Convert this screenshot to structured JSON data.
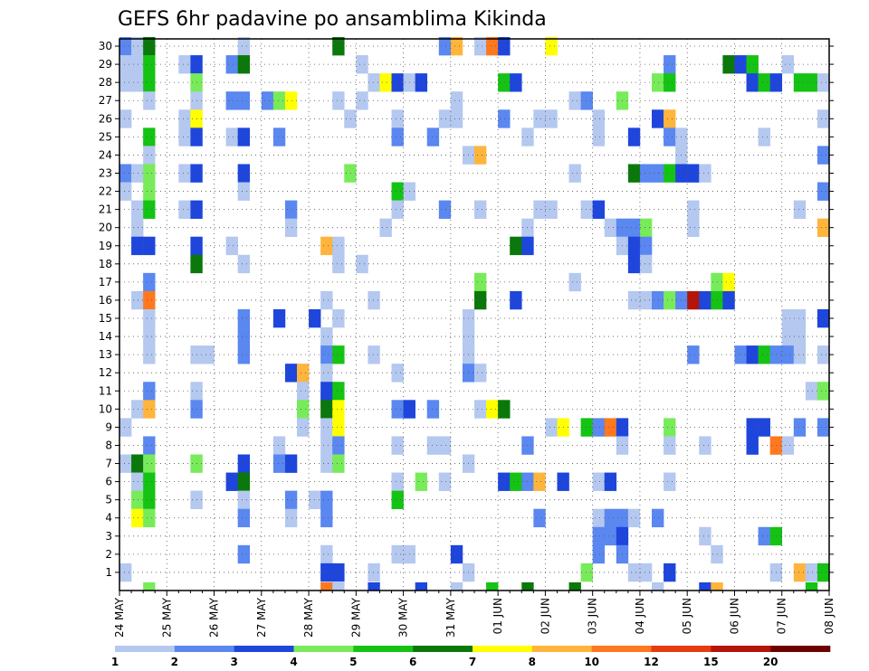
{
  "chart_data": {
    "type": "heatmap",
    "title": "GEFS 6hr padavine po ansamblima Kikinda",
    "xlabel": "",
    "ylabel": "",
    "x_ticks": [
      "24 MAY",
      "25 MAY",
      "26 MAY",
      "27 MAY",
      "28 MAY",
      "29 MAY",
      "30 MAY",
      "31 MAY",
      "01 JUN",
      "02 JUN",
      "03 JUN",
      "04 JUN",
      "05 JUN",
      "06 JUN",
      "07 JUN",
      "08 JUN"
    ],
    "y_ticks": [
      1,
      2,
      3,
      4,
      5,
      6,
      7,
      8,
      9,
      10,
      11,
      12,
      13,
      14,
      15,
      16,
      17,
      18,
      19,
      20,
      21,
      22,
      23,
      24,
      25,
      26,
      27,
      28,
      29,
      30
    ],
    "ylim": [
      0,
      30
    ],
    "time_steps": 60,
    "members": 30,
    "grid": true,
    "legend_position": "bottom",
    "legend": {
      "labels": [
        "1",
        "2",
        "3",
        "4",
        "5",
        "6",
        "7",
        "8",
        "10",
        "12",
        "15",
        "20"
      ],
      "colors": [
        "#b4c8f0",
        "#5a87f0",
        "#1e46dc",
        "#78eb5a",
        "#14c314",
        "#0a780a",
        "#ffff00",
        "#ffb43c",
        "#ff781e",
        "#e63c0f",
        "#b4140a",
        "#6e0000"
      ]
    },
    "cells": [
      [
        0,
        30,
        2
      ],
      [
        1,
        30,
        1
      ],
      [
        2,
        30,
        6
      ],
      [
        10,
        30,
        1
      ],
      [
        18,
        30,
        6
      ],
      [
        27,
        30,
        2
      ],
      [
        28,
        30,
        8
      ],
      [
        30,
        30,
        1
      ],
      [
        31,
        30,
        9
      ],
      [
        32,
        30,
        3
      ],
      [
        36,
        30,
        7
      ],
      [
        0,
        29,
        1
      ],
      [
        1,
        29,
        1
      ],
      [
        2,
        29,
        5
      ],
      [
        5,
        29,
        1
      ],
      [
        6,
        29,
        3
      ],
      [
        9,
        29,
        2
      ],
      [
        10,
        29,
        6
      ],
      [
        20,
        29,
        1
      ],
      [
        46,
        29,
        2
      ],
      [
        51,
        29,
        6
      ],
      [
        52,
        29,
        3
      ],
      [
        53,
        29,
        5
      ],
      [
        56,
        29,
        1
      ],
      [
        0,
        28,
        1
      ],
      [
        1,
        28,
        1
      ],
      [
        2,
        28,
        5
      ],
      [
        6,
        28,
        4
      ],
      [
        21,
        28,
        1
      ],
      [
        22,
        28,
        7
      ],
      [
        23,
        28,
        3
      ],
      [
        24,
        28,
        1
      ],
      [
        25,
        28,
        3
      ],
      [
        32,
        28,
        5
      ],
      [
        33,
        28,
        3
      ],
      [
        45,
        28,
        4
      ],
      [
        46,
        28,
        5
      ],
      [
        53,
        28,
        3
      ],
      [
        54,
        28,
        5
      ],
      [
        55,
        28,
        3
      ],
      [
        57,
        28,
        5
      ],
      [
        58,
        28,
        5
      ],
      [
        59,
        28,
        1
      ],
      [
        2,
        27,
        1
      ],
      [
        6,
        27,
        1
      ],
      [
        9,
        27,
        2
      ],
      [
        10,
        27,
        2
      ],
      [
        12,
        27,
        2
      ],
      [
        13,
        27,
        4
      ],
      [
        14,
        27,
        7
      ],
      [
        18,
        27,
        1
      ],
      [
        20,
        27,
        1
      ],
      [
        28,
        27,
        1
      ],
      [
        38,
        27,
        1
      ],
      [
        39,
        27,
        2
      ],
      [
        42,
        27,
        4
      ],
      [
        0,
        26,
        1
      ],
      [
        5,
        26,
        1
      ],
      [
        6,
        26,
        7
      ],
      [
        19,
        26,
        1
      ],
      [
        23,
        26,
        1
      ],
      [
        27,
        26,
        1
      ],
      [
        28,
        26,
        1
      ],
      [
        32,
        26,
        2
      ],
      [
        35,
        26,
        1
      ],
      [
        36,
        26,
        1
      ],
      [
        40,
        26,
        1
      ],
      [
        45,
        26,
        3
      ],
      [
        46,
        26,
        8
      ],
      [
        59,
        26,
        1
      ],
      [
        2,
        25,
        5
      ],
      [
        5,
        25,
        1
      ],
      [
        6,
        25,
        3
      ],
      [
        9,
        25,
        1
      ],
      [
        10,
        25,
        3
      ],
      [
        13,
        25,
        2
      ],
      [
        23,
        25,
        2
      ],
      [
        26,
        25,
        2
      ],
      [
        34,
        25,
        1
      ],
      [
        40,
        25,
        1
      ],
      [
        43,
        25,
        3
      ],
      [
        46,
        25,
        2
      ],
      [
        47,
        25,
        1
      ],
      [
        54,
        25,
        1
      ],
      [
        2,
        24,
        1
      ],
      [
        29,
        24,
        1
      ],
      [
        30,
        24,
        8
      ],
      [
        47,
        24,
        1
      ],
      [
        59,
        24,
        2
      ],
      [
        0,
        23,
        2
      ],
      [
        1,
        23,
        1
      ],
      [
        2,
        23,
        4
      ],
      [
        5,
        23,
        1
      ],
      [
        6,
        23,
        3
      ],
      [
        10,
        23,
        3
      ],
      [
        19,
        23,
        4
      ],
      [
        38,
        23,
        1
      ],
      [
        43,
        23,
        6
      ],
      [
        44,
        23,
        2
      ],
      [
        45,
        23,
        2
      ],
      [
        46,
        23,
        5
      ],
      [
        47,
        23,
        3
      ],
      [
        48,
        23,
        3
      ],
      [
        49,
        23,
        1
      ],
      [
        0,
        22,
        1
      ],
      [
        2,
        22,
        4
      ],
      [
        10,
        22,
        1
      ],
      [
        23,
        22,
        5
      ],
      [
        24,
        22,
        1
      ],
      [
        59,
        22,
        2
      ],
      [
        1,
        21,
        1
      ],
      [
        2,
        21,
        5
      ],
      [
        5,
        21,
        1
      ],
      [
        6,
        21,
        3
      ],
      [
        14,
        21,
        2
      ],
      [
        23,
        21,
        1
      ],
      [
        27,
        21,
        2
      ],
      [
        30,
        21,
        1
      ],
      [
        35,
        21,
        1
      ],
      [
        36,
        21,
        1
      ],
      [
        39,
        21,
        1
      ],
      [
        40,
        21,
        3
      ],
      [
        48,
        21,
        1
      ],
      [
        57,
        21,
        1
      ],
      [
        1,
        20,
        1
      ],
      [
        14,
        20,
        1
      ],
      [
        22,
        20,
        1
      ],
      [
        34,
        20,
        1
      ],
      [
        41,
        20,
        1
      ],
      [
        42,
        20,
        2
      ],
      [
        43,
        20,
        2
      ],
      [
        44,
        20,
        4
      ],
      [
        48,
        20,
        1
      ],
      [
        59,
        20,
        8
      ],
      [
        1,
        19,
        3
      ],
      [
        2,
        19,
        3
      ],
      [
        6,
        19,
        3
      ],
      [
        9,
        19,
        1
      ],
      [
        17,
        19,
        8
      ],
      [
        18,
        19,
        1
      ],
      [
        33,
        19,
        6
      ],
      [
        34,
        19,
        3
      ],
      [
        42,
        19,
        1
      ],
      [
        43,
        19,
        3
      ],
      [
        44,
        19,
        2
      ],
      [
        6,
        18,
        6
      ],
      [
        10,
        18,
        1
      ],
      [
        18,
        18,
        1
      ],
      [
        20,
        18,
        1
      ],
      [
        43,
        18,
        3
      ],
      [
        44,
        18,
        1
      ],
      [
        2,
        17,
        2
      ],
      [
        30,
        17,
        4
      ],
      [
        38,
        17,
        1
      ],
      [
        50,
        17,
        4
      ],
      [
        51,
        17,
        7
      ],
      [
        1,
        16,
        1
      ],
      [
        2,
        16,
        9
      ],
      [
        17,
        16,
        1
      ],
      [
        21,
        16,
        1
      ],
      [
        30,
        16,
        6
      ],
      [
        33,
        16,
        3
      ],
      [
        43,
        16,
        1
      ],
      [
        44,
        16,
        1
      ],
      [
        45,
        16,
        2
      ],
      [
        46,
        16,
        4
      ],
      [
        47,
        16,
        2
      ],
      [
        48,
        16,
        11
      ],
      [
        49,
        16,
        3
      ],
      [
        50,
        16,
        5
      ],
      [
        51,
        16,
        3
      ],
      [
        2,
        15,
        1
      ],
      [
        10,
        15,
        2
      ],
      [
        13,
        15,
        3
      ],
      [
        16,
        15,
        3
      ],
      [
        18,
        15,
        1
      ],
      [
        29,
        15,
        1
      ],
      [
        56,
        15,
        1
      ],
      [
        57,
        15,
        1
      ],
      [
        59,
        15,
        3
      ],
      [
        2,
        14,
        1
      ],
      [
        10,
        14,
        2
      ],
      [
        17,
        14,
        1
      ],
      [
        29,
        14,
        1
      ],
      [
        56,
        14,
        1
      ],
      [
        57,
        14,
        1
      ],
      [
        2,
        13,
        1
      ],
      [
        6,
        13,
        1
      ],
      [
        7,
        13,
        1
      ],
      [
        10,
        13,
        2
      ],
      [
        17,
        13,
        2
      ],
      [
        18,
        13,
        5
      ],
      [
        21,
        13,
        1
      ],
      [
        29,
        13,
        1
      ],
      [
        48,
        13,
        2
      ],
      [
        52,
        13,
        2
      ],
      [
        53,
        13,
        3
      ],
      [
        54,
        13,
        5
      ],
      [
        55,
        13,
        2
      ],
      [
        56,
        13,
        2
      ],
      [
        57,
        13,
        1
      ],
      [
        59,
        13,
        1
      ],
      [
        14,
        12,
        3
      ],
      [
        15,
        12,
        8
      ],
      [
        17,
        12,
        1
      ],
      [
        23,
        12,
        1
      ],
      [
        29,
        12,
        2
      ],
      [
        30,
        12,
        1
      ],
      [
        2,
        11,
        2
      ],
      [
        6,
        11,
        1
      ],
      [
        15,
        11,
        1
      ],
      [
        17,
        11,
        3
      ],
      [
        18,
        11,
        5
      ],
      [
        58,
        11,
        1
      ],
      [
        59,
        11,
        4
      ],
      [
        1,
        10,
        1
      ],
      [
        2,
        10,
        8
      ],
      [
        6,
        10,
        2
      ],
      [
        15,
        10,
        4
      ],
      [
        17,
        10,
        6
      ],
      [
        18,
        10,
        7
      ],
      [
        23,
        10,
        2
      ],
      [
        24,
        10,
        3
      ],
      [
        26,
        10,
        2
      ],
      [
        30,
        10,
        1
      ],
      [
        31,
        10,
        7
      ],
      [
        32,
        10,
        6
      ],
      [
        0,
        9,
        1
      ],
      [
        15,
        9,
        1
      ],
      [
        17,
        9,
        1
      ],
      [
        18,
        9,
        7
      ],
      [
        36,
        9,
        1
      ],
      [
        37,
        9,
        7
      ],
      [
        39,
        9,
        5
      ],
      [
        40,
        9,
        2
      ],
      [
        41,
        9,
        9
      ],
      [
        42,
        9,
        3
      ],
      [
        46,
        9,
        4
      ],
      [
        53,
        9,
        3
      ],
      [
        54,
        9,
        3
      ],
      [
        57,
        9,
        2
      ],
      [
        59,
        9,
        2
      ],
      [
        2,
        8,
        2
      ],
      [
        13,
        8,
        1
      ],
      [
        17,
        8,
        1
      ],
      [
        18,
        8,
        2
      ],
      [
        23,
        8,
        1
      ],
      [
        26,
        8,
        1
      ],
      [
        27,
        8,
        1
      ],
      [
        34,
        8,
        2
      ],
      [
        42,
        8,
        1
      ],
      [
        46,
        8,
        1
      ],
      [
        49,
        8,
        1
      ],
      [
        53,
        8,
        3
      ],
      [
        55,
        8,
        9
      ],
      [
        56,
        8,
        1
      ],
      [
        0,
        7,
        1
      ],
      [
        1,
        7,
        6
      ],
      [
        2,
        7,
        4
      ],
      [
        6,
        7,
        4
      ],
      [
        10,
        7,
        3
      ],
      [
        13,
        7,
        2
      ],
      [
        14,
        7,
        3
      ],
      [
        17,
        7,
        1
      ],
      [
        18,
        7,
        4
      ],
      [
        29,
        7,
        1
      ],
      [
        1,
        6,
        1
      ],
      [
        2,
        6,
        5
      ],
      [
        9,
        6,
        3
      ],
      [
        10,
        6,
        6
      ],
      [
        23,
        6,
        1
      ],
      [
        25,
        6,
        4
      ],
      [
        27,
        6,
        1
      ],
      [
        32,
        6,
        3
      ],
      [
        33,
        6,
        5
      ],
      [
        34,
        6,
        2
      ],
      [
        35,
        6,
        8
      ],
      [
        37,
        6,
        3
      ],
      [
        40,
        6,
        1
      ],
      [
        41,
        6,
        3
      ],
      [
        46,
        6,
        1
      ],
      [
        1,
        5,
        4
      ],
      [
        2,
        5,
        5
      ],
      [
        6,
        5,
        1
      ],
      [
        10,
        5,
        1
      ],
      [
        14,
        5,
        2
      ],
      [
        16,
        5,
        1
      ],
      [
        17,
        5,
        2
      ],
      [
        23,
        5,
        5
      ],
      [
        1,
        4,
        7
      ],
      [
        2,
        4,
        4
      ],
      [
        10,
        4,
        2
      ],
      [
        14,
        4,
        1
      ],
      [
        17,
        4,
        2
      ],
      [
        35,
        4,
        2
      ],
      [
        40,
        4,
        1
      ],
      [
        41,
        4,
        2
      ],
      [
        42,
        4,
        2
      ],
      [
        43,
        4,
        1
      ],
      [
        45,
        4,
        2
      ],
      [
        40,
        3,
        2
      ],
      [
        41,
        3,
        2
      ],
      [
        42,
        3,
        3
      ],
      [
        49,
        3,
        1
      ],
      [
        54,
        3,
        2
      ],
      [
        55,
        3,
        5
      ],
      [
        10,
        2,
        2
      ],
      [
        17,
        2,
        1
      ],
      [
        23,
        2,
        1
      ],
      [
        24,
        2,
        1
      ],
      [
        28,
        2,
        3
      ],
      [
        40,
        2,
        2
      ],
      [
        42,
        2,
        2
      ],
      [
        50,
        2,
        1
      ],
      [
        0,
        1,
        1
      ],
      [
        17,
        1,
        3
      ],
      [
        18,
        1,
        3
      ],
      [
        21,
        1,
        1
      ],
      [
        29,
        1,
        1
      ],
      [
        39,
        1,
        4
      ],
      [
        43,
        1,
        1
      ],
      [
        44,
        1,
        1
      ],
      [
        46,
        1,
        3
      ],
      [
        55,
        1,
        1
      ],
      [
        57,
        1,
        8
      ],
      [
        58,
        1,
        1
      ],
      [
        59,
        1,
        5
      ],
      [
        2,
        0,
        4
      ],
      [
        17,
        0,
        9
      ],
      [
        18,
        0,
        1
      ],
      [
        21,
        0,
        3
      ],
      [
        25,
        0,
        3
      ],
      [
        28,
        0,
        1
      ],
      [
        31,
        0,
        5
      ],
      [
        34,
        0,
        6
      ],
      [
        38,
        0,
        6
      ],
      [
        45,
        0,
        1
      ],
      [
        49,
        0,
        3
      ],
      [
        50,
        0,
        8
      ],
      [
        58,
        0,
        5
      ]
    ]
  }
}
